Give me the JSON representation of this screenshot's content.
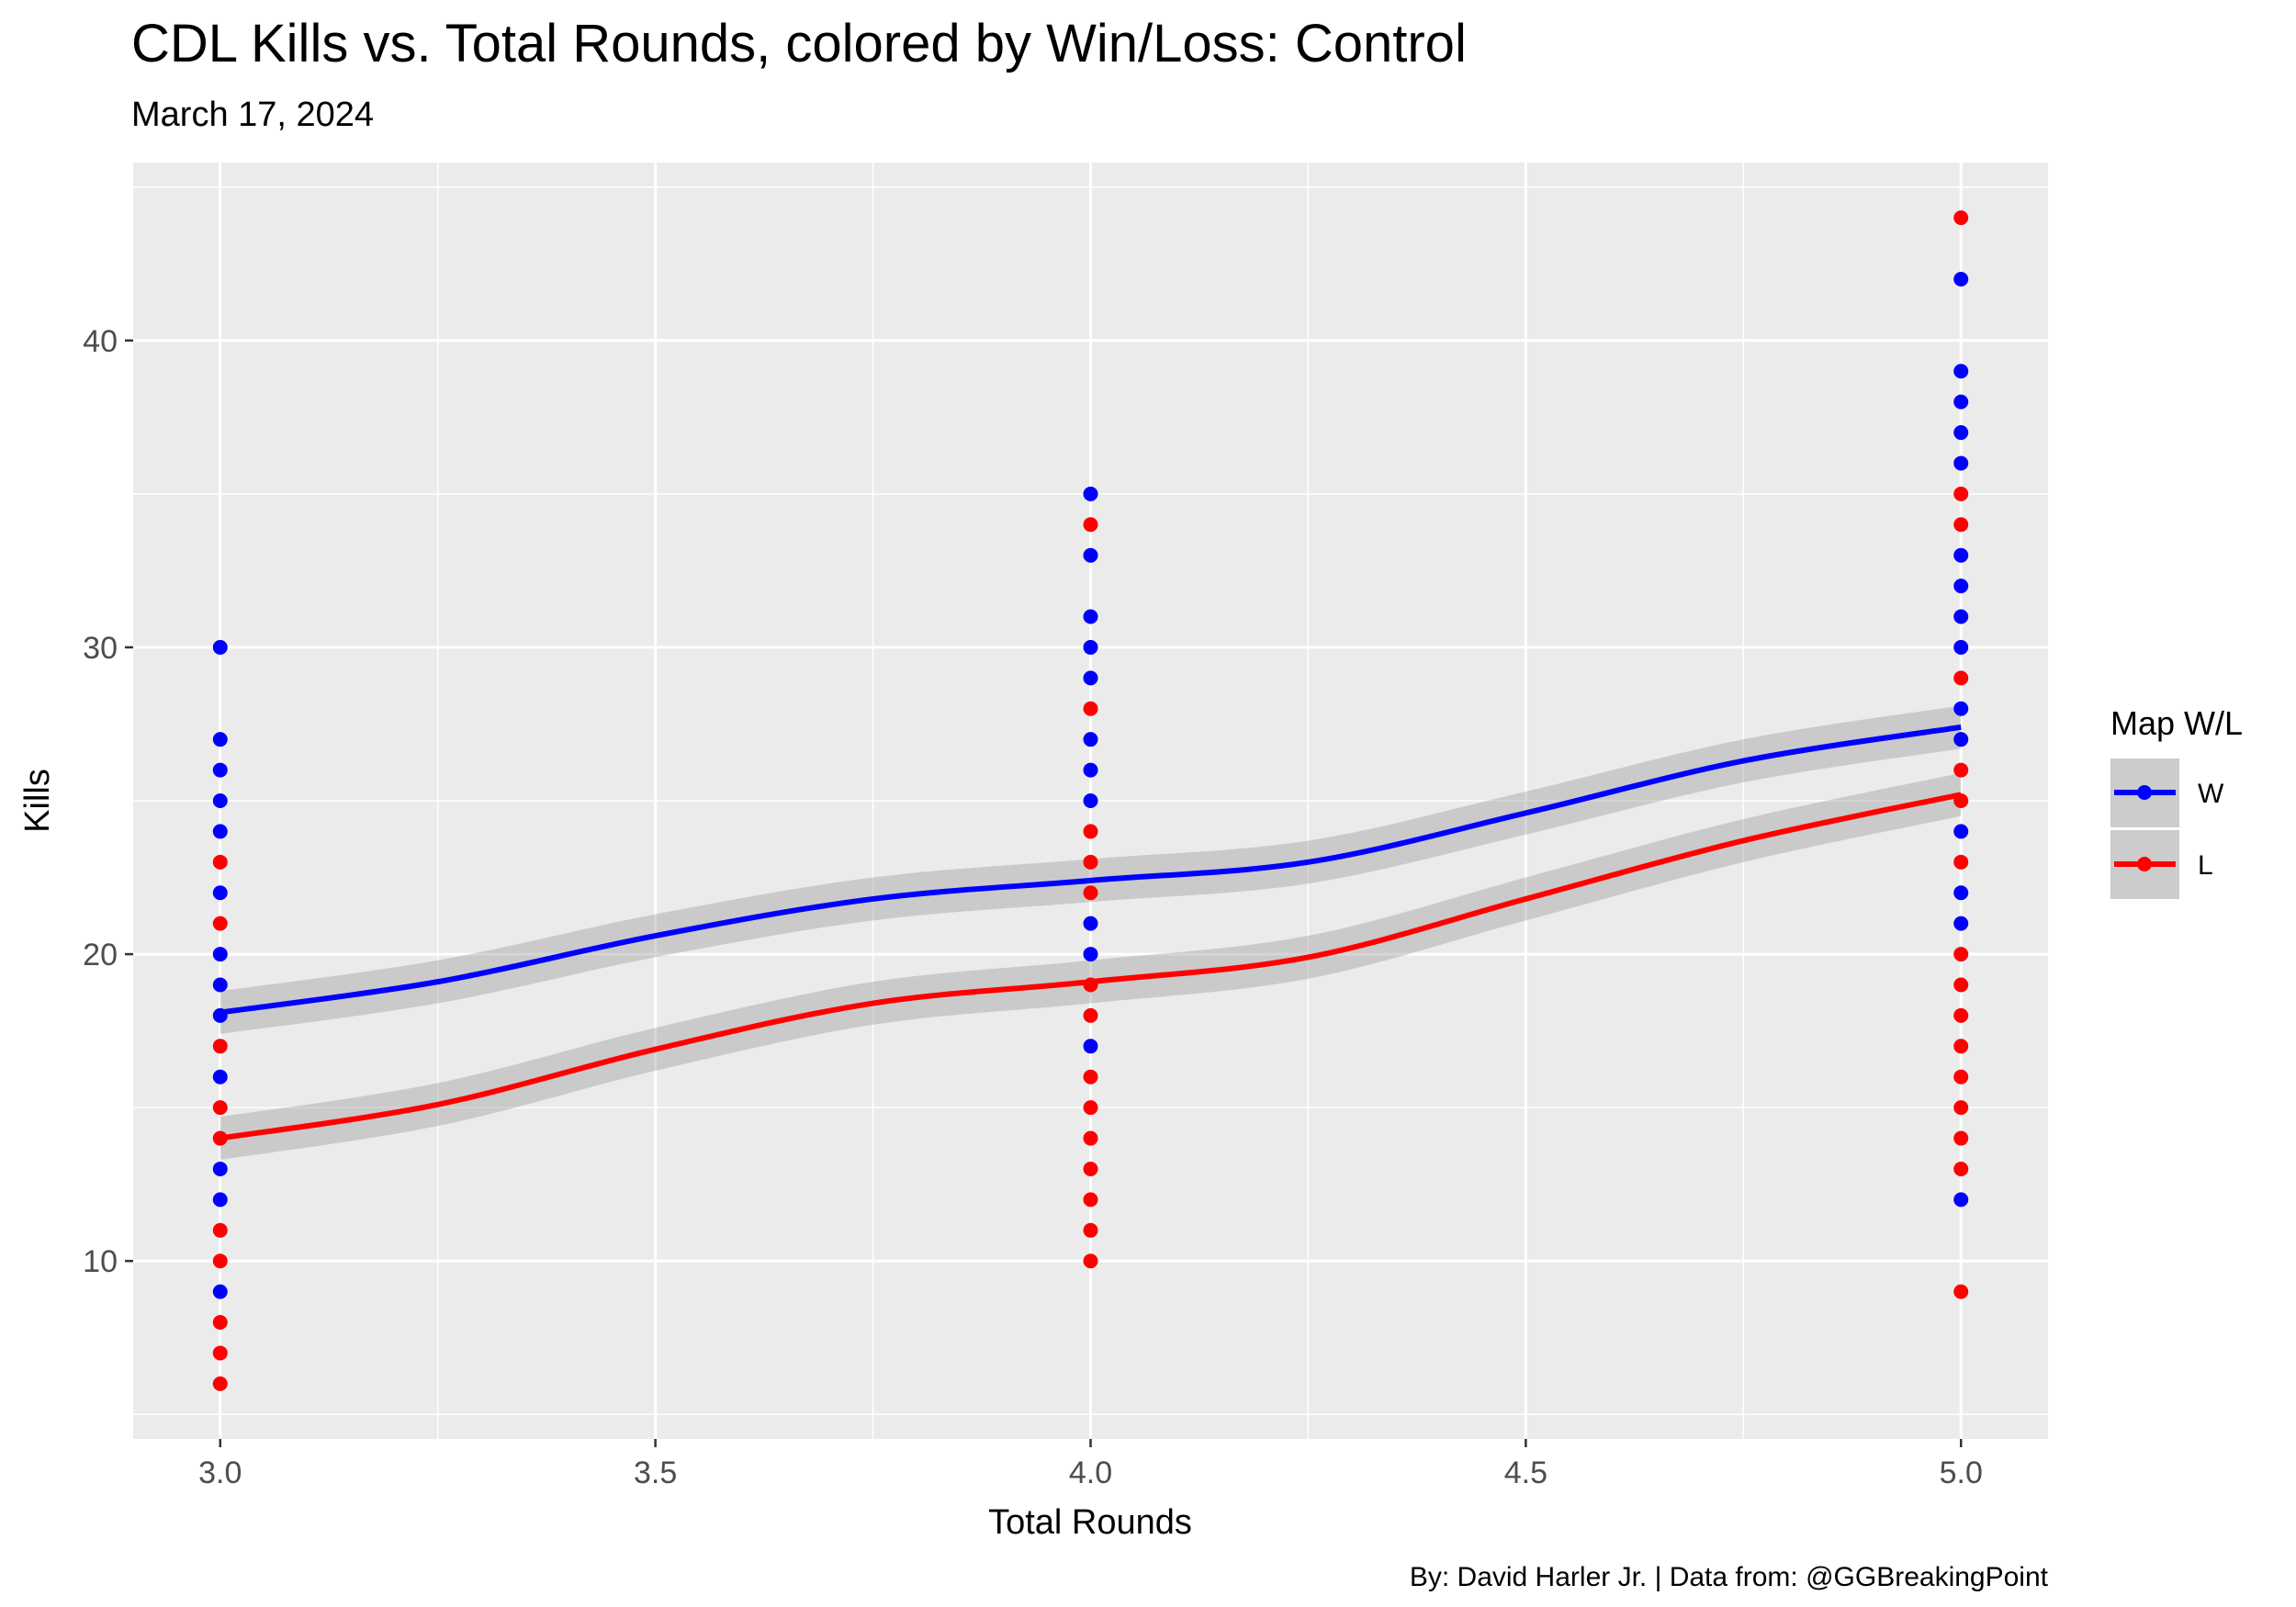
{
  "chart_data": {
    "type": "scatter",
    "title": "CDL Kills vs. Total Rounds, colored by Win/Loss: Control",
    "subtitle": "March 17, 2024",
    "xlabel": "Total Rounds",
    "ylabel": "Kills",
    "caption": "By: David Harler Jr. | Data from: @GGBreakingPoint",
    "xlim": [
      2.9,
      5.1
    ],
    "ylim": [
      4.2,
      45.8
    ],
    "x_ticks": [
      3.0,
      3.5,
      4.0,
      4.5,
      5.0
    ],
    "x_tick_labels": [
      "3.0",
      "3.5",
      "4.0",
      "4.5",
      "5.0"
    ],
    "y_ticks": [
      10,
      20,
      30,
      40
    ],
    "y_tick_labels": [
      "10",
      "20",
      "30",
      "40"
    ],
    "grid": true,
    "legend": {
      "title": "Map W/L",
      "position": "right",
      "entries": [
        {
          "label": "W",
          "color": "#0000ff"
        },
        {
          "label": "L",
          "color": "#ff0000"
        }
      ]
    },
    "series": [
      {
        "name": "W",
        "color": "#0000ff",
        "points": [
          [
            3,
            9
          ],
          [
            3,
            12
          ],
          [
            3,
            13
          ],
          [
            3,
            16
          ],
          [
            3,
            18
          ],
          [
            3,
            19
          ],
          [
            3,
            20
          ],
          [
            3,
            22
          ],
          [
            3,
            24
          ],
          [
            3,
            25
          ],
          [
            3,
            26
          ],
          [
            3,
            27
          ],
          [
            3,
            30
          ],
          [
            4,
            17
          ],
          [
            4,
            20
          ],
          [
            4,
            21
          ],
          [
            4,
            25
          ],
          [
            4,
            26
          ],
          [
            4,
            27
          ],
          [
            4,
            29
          ],
          [
            4,
            30
          ],
          [
            4,
            31
          ],
          [
            4,
            33
          ],
          [
            4,
            35
          ],
          [
            5,
            12
          ],
          [
            5,
            21
          ],
          [
            5,
            22
          ],
          [
            5,
            24
          ],
          [
            5,
            27
          ],
          [
            5,
            28
          ],
          [
            5,
            30
          ],
          [
            5,
            31
          ],
          [
            5,
            32
          ],
          [
            5,
            33
          ],
          [
            5,
            36
          ],
          [
            5,
            37
          ],
          [
            5,
            38
          ],
          [
            5,
            39
          ],
          [
            5,
            42
          ]
        ],
        "smooth": {
          "x": [
            3.0,
            3.25,
            3.5,
            3.75,
            4.0,
            4.25,
            4.5,
            4.75,
            5.0
          ],
          "y": [
            18.1,
            19.1,
            20.6,
            21.8,
            22.4,
            23.0,
            24.6,
            26.3,
            27.4
          ],
          "se": 0.7
        }
      },
      {
        "name": "L",
        "color": "#ff0000",
        "points": [
          [
            3,
            6
          ],
          [
            3,
            7
          ],
          [
            3,
            8
          ],
          [
            3,
            10
          ],
          [
            3,
            11
          ],
          [
            3,
            14
          ],
          [
            3,
            15
          ],
          [
            3,
            17
          ],
          [
            3,
            21
          ],
          [
            3,
            23
          ],
          [
            4,
            10
          ],
          [
            4,
            11
          ],
          [
            4,
            12
          ],
          [
            4,
            13
          ],
          [
            4,
            14
          ],
          [
            4,
            15
          ],
          [
            4,
            16
          ],
          [
            4,
            18
          ],
          [
            4,
            19
          ],
          [
            4,
            22
          ],
          [
            4,
            23
          ],
          [
            4,
            24
          ],
          [
            4,
            28
          ],
          [
            4,
            34
          ],
          [
            5,
            9
          ],
          [
            5,
            13
          ],
          [
            5,
            14
          ],
          [
            5,
            15
          ],
          [
            5,
            16
          ],
          [
            5,
            17
          ],
          [
            5,
            18
          ],
          [
            5,
            19
          ],
          [
            5,
            20
          ],
          [
            5,
            23
          ],
          [
            5,
            25
          ],
          [
            5,
            26
          ],
          [
            5,
            29
          ],
          [
            5,
            34
          ],
          [
            5,
            35
          ],
          [
            5,
            44
          ]
        ],
        "smooth": {
          "x": [
            3.0,
            3.25,
            3.5,
            3.75,
            4.0,
            4.25,
            4.5,
            4.75,
            5.0
          ],
          "y": [
            14.0,
            15.1,
            16.9,
            18.4,
            19.1,
            19.9,
            21.8,
            23.7,
            25.2
          ],
          "se": 0.7
        }
      }
    ]
  }
}
